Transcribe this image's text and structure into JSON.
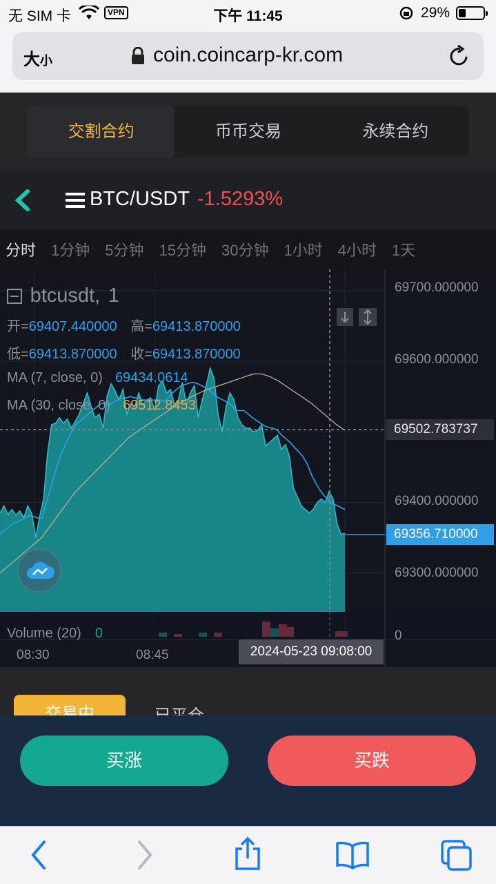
{
  "status": {
    "carrier": "无 SIM 卡",
    "vpn": "VPN",
    "time": "下午 11:45",
    "battery_pct": "29%"
  },
  "browser": {
    "text_size_label_big": "大",
    "text_size_label_small": "小",
    "url": "coin.coincarp-kr.com"
  },
  "tabs": [
    "交割合约",
    "币币交易",
    "永续合约"
  ],
  "pair": {
    "name": "BTC/USDT",
    "change": "-1.5293%"
  },
  "intervals": [
    "分时",
    "1分钟",
    "5分钟",
    "15分钟",
    "30分钟",
    "1小时",
    "4小时",
    "1天"
  ],
  "chart_data": {
    "type": "area",
    "symbol": "btcusdt",
    "resolution": "1",
    "ohlc": {
      "open_label": "开=",
      "open": "69407.440000",
      "high_label": "高=",
      "high": "69413.870000",
      "low_label": "低=",
      "low": "69413.870000",
      "close_label": "收=",
      "close": "69413.870000"
    },
    "ma7": {
      "label": "MA (7, close, 0)",
      "value": "69434.0614"
    },
    "ma30": {
      "label": "MA (30, close, 0)",
      "value": "69512.8453"
    },
    "volume": {
      "label": "Volume (20)",
      "value": "0"
    },
    "y_ticks": [
      "69700.000000",
      "69600.000000",
      "69400.000000",
      "69300.000000"
    ],
    "y_crosshair_label": "69502.783737",
    "y_last_price_label": "69356.710000",
    "y_zero": "0",
    "x_ticks": [
      "08:30",
      "08:45"
    ],
    "x_crosshair_label": "2024-05-23 09:08:00",
    "ylim": [
      69245,
      69730
    ],
    "price_points": [
      69385,
      69395,
      69383,
      69390,
      69382,
      69388,
      69378,
      69395,
      69384,
      69350,
      69380,
      69405,
      69470,
      69510,
      69512,
      69520,
      69512,
      69518,
      69505,
      69515,
      69525,
      69540,
      69555,
      69535,
      69520,
      69525,
      69505,
      69550,
      69568,
      69558,
      69545,
      69560,
      69525,
      69540,
      69535,
      69555,
      69538,
      69545,
      69548,
      69530,
      69565,
      69572,
      69555,
      69560,
      69538,
      69545,
      69570,
      69538,
      69555,
      69565,
      69520,
      69545,
      69565,
      69590,
      69575,
      69525,
      69500,
      69535,
      69555,
      69545,
      69520,
      69510,
      69505,
      69505,
      69500,
      69502,
      69510,
      69480,
      69485,
      69490,
      69495,
      69475,
      69482,
      69465,
      69420,
      69408,
      69395,
      69390,
      69385,
      69390,
      69400,
      69405,
      69400,
      69415,
      69405,
      69370,
      69355,
      69356
    ],
    "ma7_points": [
      69355,
      69360,
      69365,
      69370,
      69372,
      69375,
      69378,
      69382,
      69380,
      69378,
      69378,
      69400,
      69420,
      69440,
      69460,
      69475,
      69488,
      69500,
      69510,
      69515,
      69520,
      69525,
      69530,
      69535,
      69540,
      69540,
      69538,
      69542,
      69545,
      69548,
      69548,
      69550,
      69548,
      69548,
      69545,
      69545,
      69545,
      69545,
      69545,
      69543,
      69548,
      69555,
      69560,
      69565,
      69567,
      69569,
      69570,
      69568,
      69565,
      69562,
      69558,
      69552,
      69548,
      69545,
      69542,
      69538,
      69530,
      69530,
      69530,
      69525,
      69520,
      69516,
      69512,
      69508,
      69506,
      69505,
      69502,
      69495,
      69490,
      69485,
      69478,
      69472,
      69465,
      69455,
      69440,
      69428,
      69418,
      69410,
      69404,
      69398,
      69396,
      69393,
      69390
    ],
    "ma30_points": [
      69300,
      69305,
      69310,
      69315,
      69320,
      69325,
      69330,
      69335,
      69340,
      69345,
      69350,
      69358,
      69366,
      69374,
      69382,
      69390,
      69398,
      69406,
      69414,
      69420,
      69426,
      69432,
      69438,
      69444,
      69450,
      69456,
      69462,
      69468,
      69474,
      69480,
      69486,
      69492,
      69496,
      69500,
      69504,
      69508,
      69512,
      69516,
      69520,
      69524,
      69528,
      69532,
      69536,
      69540,
      69543,
      69546,
      69549,
      69552,
      69555,
      69558,
      69560,
      69562,
      69564,
      69566,
      69568,
      69570,
      69572,
      69574,
      69576,
      69578,
      69580,
      69582,
      69582,
      69582,
      69580,
      69578,
      69575,
      69572,
      69568,
      69564,
      69560,
      69556,
      69552,
      69548,
      69544,
      69540,
      69535,
      69530,
      69525,
      69520,
      69515,
      69510,
      69506,
      69502
    ]
  },
  "order_tabs": [
    "交易中",
    "已平仓"
  ],
  "actions": {
    "buy": "买涨",
    "sell": "买跌"
  },
  "colors": {
    "accent": "#f2b538",
    "buy": "#13a88f",
    "sell": "#f05a5d",
    "down": "#e85151",
    "area": "#1a9a9c",
    "ma7": "#2e9fe8",
    "ma30": "#e8a24e"
  }
}
